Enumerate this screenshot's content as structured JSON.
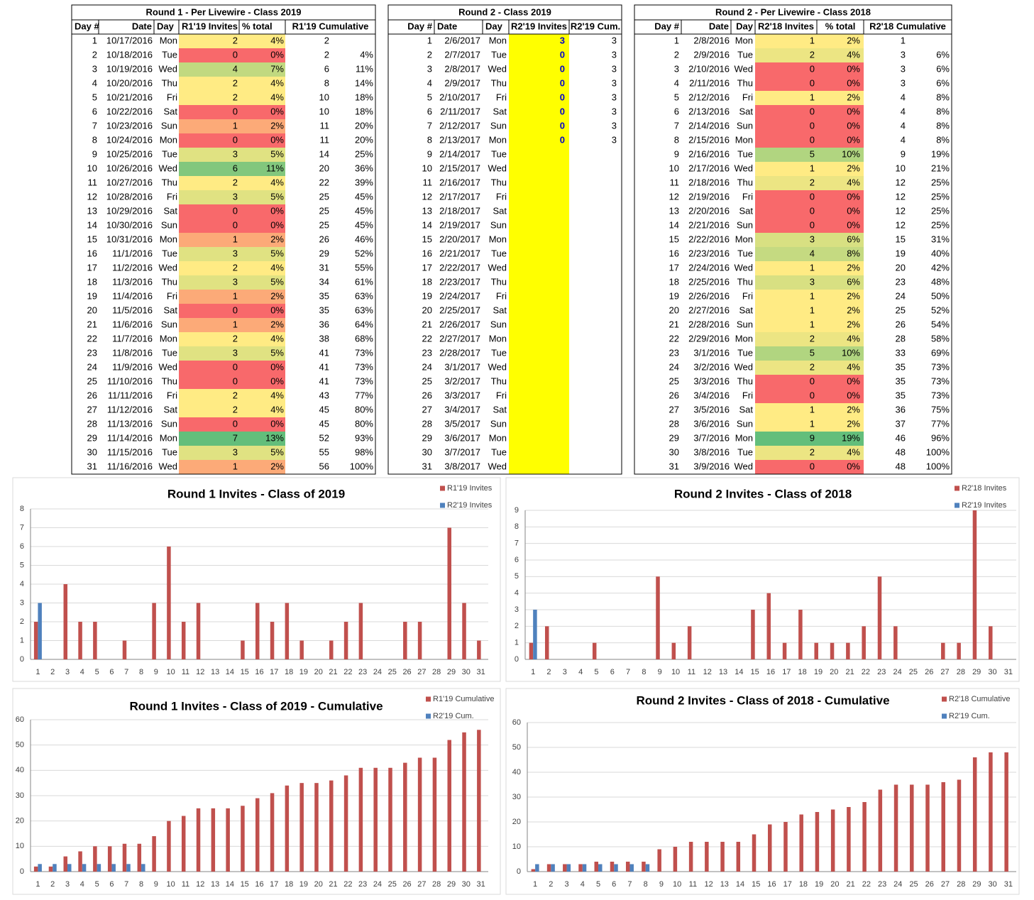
{
  "tables": [
    {
      "title": "Round 1 - Per Livewire - Class 2019",
      "headers": [
        "Day #",
        "Date",
        "Day",
        "R1'19 Invites",
        "% total",
        "R1'19 Cumulative"
      ],
      "color_scale": [
        "#F8696B",
        "#FFEB84",
        "#63BE7B"
      ],
      "rows": [
        [
          1,
          "10/17/2016",
          "Mon",
          2,
          "4%",
          2
        ],
        [
          2,
          "10/18/2016",
          "Tue",
          0,
          "0%",
          2,
          "4%"
        ],
        [
          3,
          "10/19/2016",
          "Wed",
          4,
          "7%",
          6,
          "11%"
        ],
        [
          4,
          "10/20/2016",
          "Thu",
          2,
          "4%",
          8,
          "14%"
        ],
        [
          5,
          "10/21/2016",
          "Fri",
          2,
          "4%",
          10,
          "18%"
        ],
        [
          6,
          "10/22/2016",
          "Sat",
          0,
          "0%",
          10,
          "18%"
        ],
        [
          7,
          "10/23/2016",
          "Sun",
          1,
          "2%",
          11,
          "20%"
        ],
        [
          8,
          "10/24/2016",
          "Mon",
          0,
          "0%",
          11,
          "20%"
        ],
        [
          9,
          "10/25/2016",
          "Tue",
          3,
          "5%",
          14,
          "25%"
        ],
        [
          10,
          "10/26/2016",
          "Wed",
          6,
          "11%",
          20,
          "36%"
        ],
        [
          11,
          "10/27/2016",
          "Thu",
          2,
          "4%",
          22,
          "39%"
        ],
        [
          12,
          "10/28/2016",
          "Fri",
          3,
          "5%",
          25,
          "45%"
        ],
        [
          13,
          "10/29/2016",
          "Sat",
          0,
          "0%",
          25,
          "45%"
        ],
        [
          14,
          "10/30/2016",
          "Sun",
          0,
          "0%",
          25,
          "45%"
        ],
        [
          15,
          "10/31/2016",
          "Mon",
          1,
          "2%",
          26,
          "46%"
        ],
        [
          16,
          "11/1/2016",
          "Tue",
          3,
          "5%",
          29,
          "52%"
        ],
        [
          17,
          "11/2/2016",
          "Wed",
          2,
          "4%",
          31,
          "55%"
        ],
        [
          18,
          "11/3/2016",
          "Thu",
          3,
          "5%",
          34,
          "61%"
        ],
        [
          19,
          "11/4/2016",
          "Fri",
          1,
          "2%",
          35,
          "63%"
        ],
        [
          20,
          "11/5/2016",
          "Sat",
          0,
          "0%",
          35,
          "63%"
        ],
        [
          21,
          "11/6/2016",
          "Sun",
          1,
          "2%",
          36,
          "64%"
        ],
        [
          22,
          "11/7/2016",
          "Mon",
          2,
          "4%",
          38,
          "68%"
        ],
        [
          23,
          "11/8/2016",
          "Tue",
          3,
          "5%",
          41,
          "73%"
        ],
        [
          24,
          "11/9/2016",
          "Wed",
          0,
          "0%",
          41,
          "73%"
        ],
        [
          25,
          "11/10/2016",
          "Thu",
          0,
          "0%",
          41,
          "73%"
        ],
        [
          26,
          "11/11/2016",
          "Fri",
          2,
          "4%",
          43,
          "77%"
        ],
        [
          27,
          "11/12/2016",
          "Sat",
          2,
          "4%",
          45,
          "80%"
        ],
        [
          28,
          "11/13/2016",
          "Sun",
          0,
          "0%",
          45,
          "80%"
        ],
        [
          29,
          "11/14/2016",
          "Mon",
          7,
          "13%",
          52,
          "93%"
        ],
        [
          30,
          "11/15/2016",
          "Tue",
          3,
          "5%",
          55,
          "98%"
        ],
        [
          31,
          "11/16/2016",
          "Wed",
          1,
          "2%",
          56,
          "100%"
        ]
      ]
    },
    {
      "title": "Round 2 - Class 2019",
      "headers": [
        "Day #",
        "Date",
        "Day",
        "R2'19 Invites",
        "R2'19 Cum."
      ],
      "highlight_color": "#FFFF00",
      "rows": [
        [
          1,
          "2/6/2017",
          "Mon",
          3,
          3
        ],
        [
          2,
          "2/7/2017",
          "Tue",
          0,
          3
        ],
        [
          3,
          "2/8/2017",
          "Wed",
          0,
          3
        ],
        [
          4,
          "2/9/2017",
          "Thu",
          0,
          3
        ],
        [
          5,
          "2/10/2017",
          "Fri",
          0,
          3
        ],
        [
          6,
          "2/11/2017",
          "Sat",
          0,
          3
        ],
        [
          7,
          "2/12/2017",
          "Sun",
          0,
          3
        ],
        [
          8,
          "2/13/2017",
          "Mon",
          0,
          3
        ],
        [
          9,
          "2/14/2017",
          "Tue"
        ],
        [
          10,
          "2/15/2017",
          "Wed"
        ],
        [
          11,
          "2/16/2017",
          "Thu"
        ],
        [
          12,
          "2/17/2017",
          "Fri"
        ],
        [
          13,
          "2/18/2017",
          "Sat"
        ],
        [
          14,
          "2/19/2017",
          "Sun"
        ],
        [
          15,
          "2/20/2017",
          "Mon"
        ],
        [
          16,
          "2/21/2017",
          "Tue"
        ],
        [
          17,
          "2/22/2017",
          "Wed"
        ],
        [
          18,
          "2/23/2017",
          "Thu"
        ],
        [
          19,
          "2/24/2017",
          "Fri"
        ],
        [
          20,
          "2/25/2017",
          "Sat"
        ],
        [
          21,
          "2/26/2017",
          "Sun"
        ],
        [
          22,
          "2/27/2017",
          "Mon"
        ],
        [
          23,
          "2/28/2017",
          "Tue"
        ],
        [
          24,
          "3/1/2017",
          "Wed"
        ],
        [
          25,
          "3/2/2017",
          "Thu"
        ],
        [
          26,
          "3/3/2017",
          "Fri"
        ],
        [
          27,
          "3/4/2017",
          "Sat"
        ],
        [
          28,
          "3/5/2017",
          "Sun"
        ],
        [
          29,
          "3/6/2017",
          "Mon"
        ],
        [
          30,
          "3/7/2017",
          "Tue"
        ],
        [
          31,
          "3/8/2017",
          "Wed"
        ]
      ]
    },
    {
      "title": "Round 2 - Per Livewire - Class 2018",
      "headers": [
        "Day #",
        "Date",
        "Day",
        "R2'18 Invites",
        "% total",
        "R2'18 Cumulative"
      ],
      "color_scale": [
        "#F8696B",
        "#FFEB84",
        "#63BE7B"
      ],
      "rows": [
        [
          1,
          "2/8/2016",
          "Mon",
          1,
          "2%",
          1
        ],
        [
          2,
          "2/9/2016",
          "Tue",
          2,
          "4%",
          3,
          "6%"
        ],
        [
          3,
          "2/10/2016",
          "Wed",
          0,
          "0%",
          3,
          "6%"
        ],
        [
          4,
          "2/11/2016",
          "Thu",
          0,
          "0%",
          3,
          "6%"
        ],
        [
          5,
          "2/12/2016",
          "Fri",
          1,
          "2%",
          4,
          "8%"
        ],
        [
          6,
          "2/13/2016",
          "Sat",
          0,
          "0%",
          4,
          "8%"
        ],
        [
          7,
          "2/14/2016",
          "Sun",
          0,
          "0%",
          4,
          "8%"
        ],
        [
          8,
          "2/15/2016",
          "Mon",
          0,
          "0%",
          4,
          "8%"
        ],
        [
          9,
          "2/16/2016",
          "Tue",
          5,
          "10%",
          9,
          "19%"
        ],
        [
          10,
          "2/17/2016",
          "Wed",
          1,
          "2%",
          10,
          "21%"
        ],
        [
          11,
          "2/18/2016",
          "Thu",
          2,
          "4%",
          12,
          "25%"
        ],
        [
          12,
          "2/19/2016",
          "Fri",
          0,
          "0%",
          12,
          "25%"
        ],
        [
          13,
          "2/20/2016",
          "Sat",
          0,
          "0%",
          12,
          "25%"
        ],
        [
          14,
          "2/21/2016",
          "Sun",
          0,
          "0%",
          12,
          "25%"
        ],
        [
          15,
          "2/22/2016",
          "Mon",
          3,
          "6%",
          15,
          "31%"
        ],
        [
          16,
          "2/23/2016",
          "Tue",
          4,
          "8%",
          19,
          "40%"
        ],
        [
          17,
          "2/24/2016",
          "Wed",
          1,
          "2%",
          20,
          "42%"
        ],
        [
          18,
          "2/25/2016",
          "Thu",
          3,
          "6%",
          23,
          "48%"
        ],
        [
          19,
          "2/26/2016",
          "Fri",
          1,
          "2%",
          24,
          "50%"
        ],
        [
          20,
          "2/27/2016",
          "Sat",
          1,
          "2%",
          25,
          "52%"
        ],
        [
          21,
          "2/28/2016",
          "Sun",
          1,
          "2%",
          26,
          "54%"
        ],
        [
          22,
          "2/29/2016",
          "Mon",
          2,
          "4%",
          28,
          "58%"
        ],
        [
          23,
          "3/1/2016",
          "Tue",
          5,
          "10%",
          33,
          "69%"
        ],
        [
          24,
          "3/2/2016",
          "Wed",
          2,
          "4%",
          35,
          "73%"
        ],
        [
          25,
          "3/3/2016",
          "Thu",
          0,
          "0%",
          35,
          "73%"
        ],
        [
          26,
          "3/4/2016",
          "Fri",
          0,
          "0%",
          35,
          "73%"
        ],
        [
          27,
          "3/5/2016",
          "Sat",
          1,
          "2%",
          36,
          "75%"
        ],
        [
          28,
          "3/6/2016",
          "Sun",
          1,
          "2%",
          37,
          "77%"
        ],
        [
          29,
          "3/7/2016",
          "Mon",
          9,
          "19%",
          46,
          "96%"
        ],
        [
          30,
          "3/8/2016",
          "Tue",
          2,
          "4%",
          48,
          "100%"
        ],
        [
          31,
          "3/9/2016",
          "Wed",
          0,
          "0%",
          48,
          "100%"
        ]
      ]
    }
  ],
  "chart_data": [
    {
      "type": "bar",
      "title": "Round 1 Invites - Class of 2019",
      "legend": "top-right",
      "grid": true,
      "ylim": [
        0,
        8
      ],
      "yticks": [
        0,
        1,
        2,
        3,
        4,
        5,
        6,
        7,
        8
      ],
      "categories": [
        1,
        2,
        3,
        4,
        5,
        6,
        7,
        8,
        9,
        10,
        11,
        12,
        13,
        14,
        15,
        16,
        17,
        18,
        19,
        20,
        21,
        22,
        23,
        24,
        25,
        26,
        27,
        28,
        29,
        30,
        31
      ],
      "series": [
        {
          "name": "R1'19 Invites",
          "color": "#C0504D",
          "values": [
            2,
            0,
            4,
            2,
            2,
            0,
            1,
            0,
            3,
            6,
            2,
            3,
            0,
            0,
            1,
            3,
            2,
            3,
            1,
            0,
            1,
            2,
            3,
            0,
            0,
            2,
            2,
            0,
            7,
            3,
            1
          ]
        },
        {
          "name": "R2'19 Invites",
          "color": "#4F81BD",
          "values": [
            3,
            0,
            0,
            0,
            0,
            0,
            0,
            0,
            null,
            null,
            null,
            null,
            null,
            null,
            null,
            null,
            null,
            null,
            null,
            null,
            null,
            null,
            null,
            null,
            null,
            null,
            null,
            null,
            null,
            null,
            null
          ]
        }
      ]
    },
    {
      "type": "bar",
      "title": "Round 2 Invites - Class of 2018",
      "legend": "top-right",
      "grid": true,
      "ylim": [
        0,
        9
      ],
      "yticks": [
        0,
        1,
        2,
        3,
        4,
        5,
        6,
        7,
        8,
        9
      ],
      "categories": [
        1,
        2,
        3,
        4,
        5,
        6,
        7,
        8,
        9,
        10,
        11,
        12,
        13,
        14,
        15,
        16,
        17,
        18,
        19,
        20,
        21,
        22,
        23,
        24,
        25,
        26,
        27,
        28,
        29,
        30,
        31
      ],
      "series": [
        {
          "name": "R2'18 Invites",
          "color": "#C0504D",
          "values": [
            1,
            2,
            0,
            0,
            1,
            0,
            0,
            0,
            5,
            1,
            2,
            0,
            0,
            0,
            3,
            4,
            1,
            3,
            1,
            1,
            1,
            2,
            5,
            2,
            0,
            0,
            1,
            1,
            9,
            2,
            0
          ]
        },
        {
          "name": "R2'19 Invites",
          "color": "#4F81BD",
          "values": [
            3,
            0,
            0,
            0,
            0,
            0,
            0,
            0,
            null,
            null,
            null,
            null,
            null,
            null,
            null,
            null,
            null,
            null,
            null,
            null,
            null,
            null,
            null,
            null,
            null,
            null,
            null,
            null,
            null,
            null,
            null
          ]
        }
      ]
    },
    {
      "type": "bar",
      "title": "Round 1 Invites - Class of 2019 - Cumulative",
      "legend": "top-right",
      "grid": true,
      "ylim": [
        0,
        60
      ],
      "yticks": [
        0,
        10,
        20,
        30,
        40,
        50,
        60
      ],
      "categories": [
        1,
        2,
        3,
        4,
        5,
        6,
        7,
        8,
        9,
        10,
        11,
        12,
        13,
        14,
        15,
        16,
        17,
        18,
        19,
        20,
        21,
        22,
        23,
        24,
        25,
        26,
        27,
        28,
        29,
        30,
        31
      ],
      "series": [
        {
          "name": "R1'19 Cumulative",
          "color": "#C0504D",
          "values": [
            2,
            2,
            6,
            8,
            10,
            10,
            11,
            11,
            14,
            20,
            22,
            25,
            25,
            25,
            26,
            29,
            31,
            34,
            35,
            35,
            36,
            38,
            41,
            41,
            41,
            43,
            45,
            45,
            52,
            55,
            56
          ]
        },
        {
          "name": "R2'19 Cum.",
          "color": "#4F81BD",
          "values": [
            3,
            3,
            3,
            3,
            3,
            3,
            3,
            3,
            null,
            null,
            null,
            null,
            null,
            null,
            null,
            null,
            null,
            null,
            null,
            null,
            null,
            null,
            null,
            null,
            null,
            null,
            null,
            null,
            null,
            null,
            null
          ]
        }
      ]
    },
    {
      "type": "bar",
      "title": "Round 2 Invites - Class of 2018 - Cumulative",
      "legend": "top-right",
      "grid": true,
      "ylim": [
        0,
        60
      ],
      "yticks": [
        0,
        10,
        20,
        30,
        40,
        50,
        60
      ],
      "categories": [
        1,
        2,
        3,
        4,
        5,
        6,
        7,
        8,
        9,
        10,
        11,
        12,
        13,
        14,
        15,
        16,
        17,
        18,
        19,
        20,
        21,
        22,
        23,
        24,
        25,
        26,
        27,
        28,
        29,
        30,
        31
      ],
      "series": [
        {
          "name": "R2'18 Cumulative",
          "color": "#C0504D",
          "values": [
            1,
            3,
            3,
            3,
            4,
            4,
            4,
            4,
            9,
            10,
            12,
            12,
            12,
            12,
            15,
            19,
            20,
            23,
            24,
            25,
            26,
            28,
            33,
            35,
            35,
            35,
            36,
            37,
            46,
            48,
            48
          ]
        },
        {
          "name": "R2'19 Cum.",
          "color": "#4F81BD",
          "values": [
            3,
            3,
            3,
            3,
            3,
            3,
            3,
            3,
            null,
            null,
            null,
            null,
            null,
            null,
            null,
            null,
            null,
            null,
            null,
            null,
            null,
            null,
            null,
            null,
            null,
            null,
            null,
            null,
            null,
            null,
            null
          ]
        }
      ]
    }
  ]
}
